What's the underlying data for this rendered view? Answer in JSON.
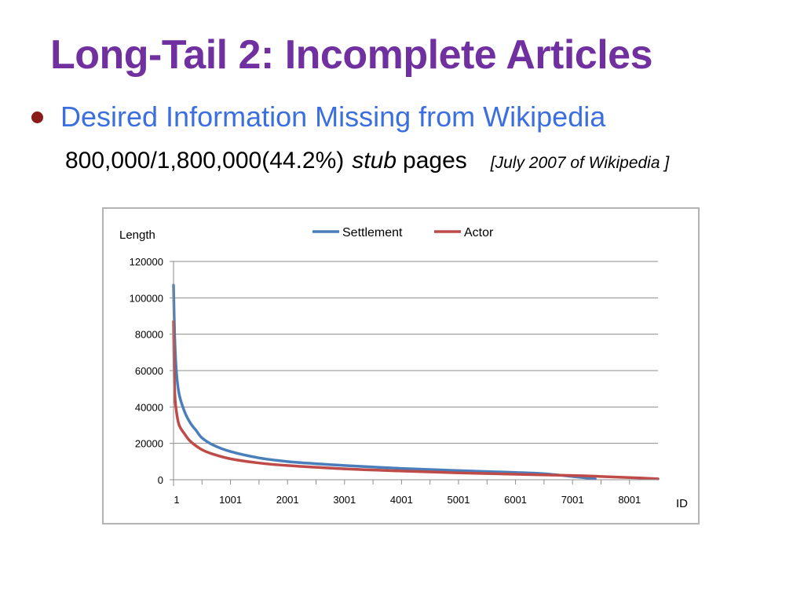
{
  "slide": {
    "title": "Long-Tail 2: Incomplete Articles",
    "bullet": "Desired Information Missing from Wikipedia",
    "stat_text": "800,000/1,800,000(44.2%)",
    "stub_word": "stub",
    "pages_word": "pages",
    "source_note": "[July 2007 of Wikipedia ]"
  },
  "colors": {
    "title": "#7030a0",
    "bullet_text": "#3b6fe0",
    "bullet_dot": "#8b1a1a",
    "settlement": "#4a7ebb",
    "actor": "#be4b48",
    "grid": "#8c8c8c"
  },
  "chart_data": {
    "type": "line",
    "title": "",
    "xlabel": "ID",
    "ylabel": "Length",
    "xlim": [
      1,
      8500
    ],
    "ylim": [
      0,
      120000
    ],
    "x_ticks": [
      1,
      1001,
      2001,
      3001,
      4001,
      5001,
      6001,
      7001,
      8001
    ],
    "x_tick_labels": [
      "1",
      "1001",
      "2001",
      "3001",
      "4001",
      "5001",
      "6001",
      "7001",
      "8001"
    ],
    "y_ticks": [
      0,
      20000,
      40000,
      60000,
      80000,
      100000,
      120000
    ],
    "y_tick_labels": [
      "0",
      "20000",
      "40000",
      "60000",
      "80000",
      "100000",
      "120000"
    ],
    "grid": true,
    "legend_position": "top-center",
    "series": [
      {
        "name": "Settlement",
        "color": "#4a7ebb",
        "x": [
          1,
          20,
          50,
          100,
          200,
          300,
          400,
          500,
          700,
          1000,
          1500,
          2000,
          2500,
          3000,
          4000,
          5000,
          6000,
          6500,
          7000,
          7400
        ],
        "y": [
          107000,
          80000,
          60000,
          47000,
          37000,
          31000,
          27000,
          23000,
          19000,
          15500,
          12000,
          10000,
          8800,
          7800,
          6200,
          5000,
          4000,
          3300,
          1800,
          500
        ]
      },
      {
        "name": "Actor",
        "color": "#be4b48",
        "x": [
          1,
          20,
          50,
          100,
          200,
          300,
          500,
          700,
          1000,
          1500,
          2000,
          3000,
          4000,
          5000,
          6000,
          7000,
          7500,
          8000,
          8500
        ],
        "y": [
          87000,
          50000,
          38000,
          30000,
          25000,
          21000,
          16500,
          14000,
          11500,
          9200,
          7800,
          6000,
          4800,
          3800,
          3000,
          2300,
          1800,
          1200,
          500
        ]
      }
    ]
  }
}
